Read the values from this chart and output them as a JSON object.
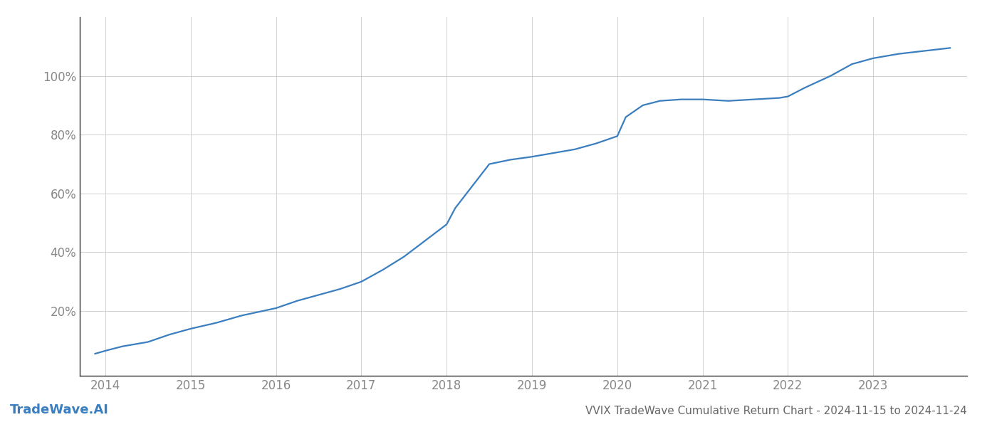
{
  "title": "VVIX TradeWave Cumulative Return Chart - 2024-11-15 to 2024-11-24",
  "watermark": "TradeWave.AI",
  "line_color": "#3a7ebf",
  "background_color": "#ffffff",
  "grid_color": "#d0d0d0",
  "x_years": [
    2014,
    2015,
    2016,
    2017,
    2018,
    2019,
    2020,
    2021,
    2022,
    2023
  ],
  "x_values": [
    2013.88,
    2014.0,
    2014.2,
    2014.5,
    2014.75,
    2015.0,
    2015.3,
    2015.6,
    2016.0,
    2016.25,
    2016.5,
    2016.75,
    2017.0,
    2017.25,
    2017.5,
    2017.75,
    2018.0,
    2018.1,
    2018.3,
    2018.5,
    2018.75,
    2019.0,
    2019.2,
    2019.5,
    2019.75,
    2020.0,
    2020.1,
    2020.3,
    2020.5,
    2020.75,
    2021.0,
    2021.3,
    2021.6,
    2021.9,
    2022.0,
    2022.2,
    2022.5,
    2022.75,
    2023.0,
    2023.3,
    2023.6,
    2023.9
  ],
  "y_values": [
    5.5,
    6.5,
    8.0,
    9.5,
    12.0,
    14.0,
    16.0,
    18.5,
    21.0,
    23.5,
    25.5,
    27.5,
    30.0,
    34.0,
    38.5,
    44.0,
    49.5,
    55.0,
    62.5,
    70.0,
    71.5,
    72.5,
    73.5,
    75.0,
    77.0,
    79.5,
    86.0,
    90.0,
    91.5,
    92.0,
    92.0,
    91.5,
    92.0,
    92.5,
    93.0,
    96.0,
    100.0,
    104.0,
    106.0,
    107.5,
    108.5,
    109.5
  ],
  "yticks": [
    20,
    40,
    60,
    80,
    100
  ],
  "ylim": [
    -2,
    120
  ],
  "xlim": [
    2013.7,
    2024.1
  ],
  "line_width": 1.6,
  "title_fontsize": 11,
  "tick_fontsize": 12,
  "watermark_fontsize": 13,
  "tick_color": "#888888",
  "title_color": "#666666",
  "spine_color": "#333333"
}
